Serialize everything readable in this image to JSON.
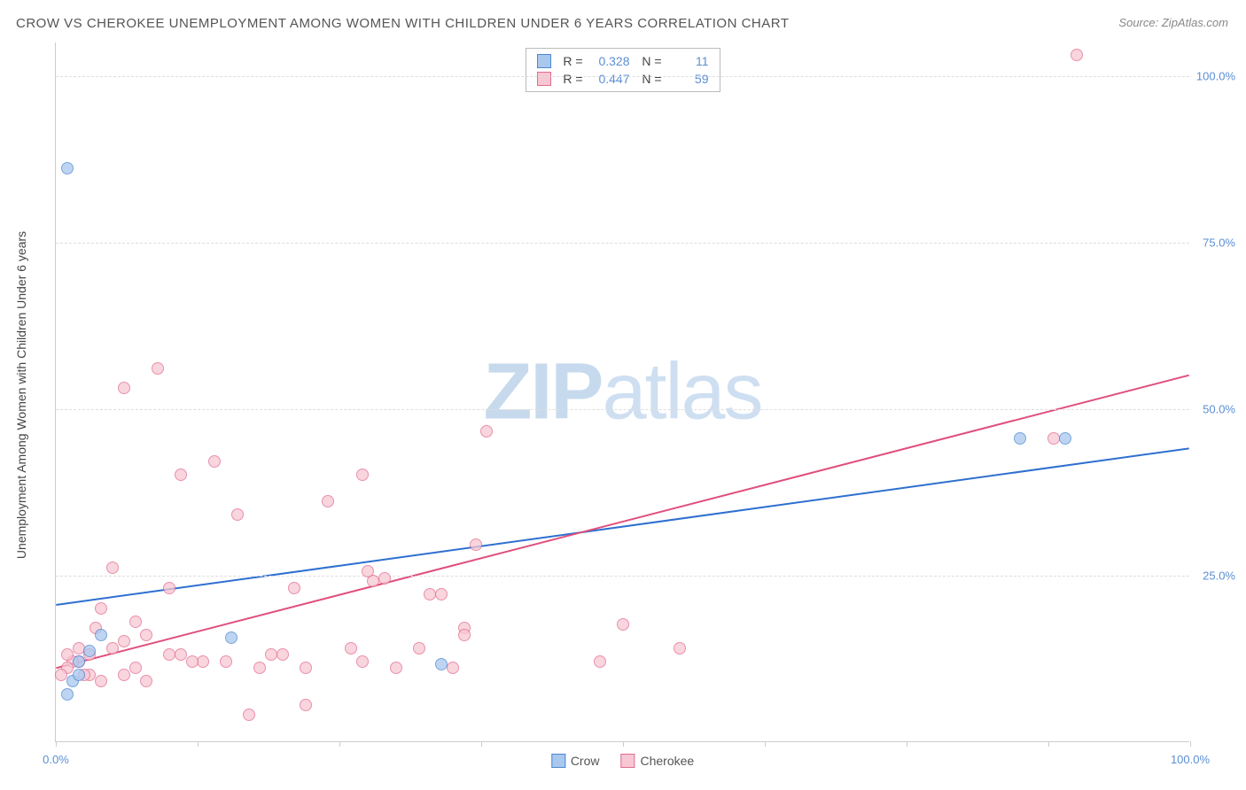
{
  "title": "CROW VS CHEROKEE UNEMPLOYMENT AMONG WOMEN WITH CHILDREN UNDER 6 YEARS CORRELATION CHART",
  "source_label": "Source:",
  "source_value": "ZipAtlas.com",
  "y_axis_label": "Unemployment Among Women with Children Under 6 years",
  "watermark": {
    "left": "ZIP",
    "right": "atlas"
  },
  "colors": {
    "crow_fill": "#a8c8ee",
    "crow_stroke": "#4f86d1",
    "cherokee_fill": "#f7c7d4",
    "cherokee_stroke": "#e26b8f",
    "crow_line": "#2e6fd0",
    "cherokee_line": "#e04f7c",
    "grid": "#dddddd",
    "axis_text": "#5b8fd6",
    "text": "#555555"
  },
  "chart": {
    "type": "scatter",
    "xlim": [
      0,
      100
    ],
    "ylim": [
      0,
      105
    ],
    "x_ticks": [
      0,
      12.5,
      25,
      37.5,
      50,
      62.5,
      75,
      87.5,
      100
    ],
    "x_tick_labels": {
      "0": "0.0%",
      "100": "100.0%"
    },
    "y_gridlines": [
      25,
      50,
      75,
      100
    ],
    "y_tick_labels": {
      "25": "25.0%",
      "50": "50.0%",
      "75": "75.0%",
      "100": "100.0%"
    },
    "point_radius": 7,
    "point_opacity": 0.75,
    "line_width": 2,
    "background_color": "#ffffff"
  },
  "legend_top": {
    "r_label": "R =",
    "n_label": "N =",
    "rows": [
      {
        "series": "crow",
        "r": "0.328",
        "n": "11"
      },
      {
        "series": "cherokee",
        "r": "0.447",
        "n": "59"
      }
    ]
  },
  "legend_bottom": [
    {
      "series": "crow",
      "label": "Crow"
    },
    {
      "series": "cherokee",
      "label": "Cherokee"
    }
  ],
  "trend_lines": {
    "crow": {
      "x1": 0,
      "y1": 20.5,
      "x2": 100,
      "y2": 44
    },
    "cherokee": {
      "x1": 0,
      "y1": 11,
      "x2": 100,
      "y2": 55
    }
  },
  "series": {
    "crow": [
      [
        1,
        86
      ],
      [
        1.5,
        9
      ],
      [
        1,
        7
      ],
      [
        3,
        13.5
      ],
      [
        4,
        16
      ],
      [
        15.5,
        15.5
      ],
      [
        34,
        11.5
      ],
      [
        85,
        45.5
      ],
      [
        89,
        45.5
      ],
      [
        2,
        10
      ],
      [
        2,
        12
      ]
    ],
    "cherokee": [
      [
        90,
        103
      ],
      [
        88,
        45.5
      ],
      [
        50,
        17.5
      ],
      [
        55,
        14
      ],
      [
        48,
        12
      ],
      [
        36,
        17
      ],
      [
        36,
        16
      ],
      [
        38,
        46.5
      ],
      [
        35,
        11
      ],
      [
        34,
        22
      ],
      [
        33,
        22
      ],
      [
        32,
        14
      ],
      [
        30,
        11
      ],
      [
        29,
        24.5
      ],
      [
        28,
        24
      ],
      [
        27.5,
        25.5
      ],
      [
        27,
        40
      ],
      [
        27,
        12
      ],
      [
        26,
        14
      ],
      [
        24,
        36
      ],
      [
        22,
        11
      ],
      [
        22,
        5.5
      ],
      [
        21,
        23
      ],
      [
        20,
        13
      ],
      [
        19,
        13
      ],
      [
        18,
        11
      ],
      [
        17,
        4
      ],
      [
        16,
        34
      ],
      [
        15,
        12
      ],
      [
        14,
        42
      ],
      [
        13,
        12
      ],
      [
        12,
        12
      ],
      [
        11,
        40
      ],
      [
        11,
        13
      ],
      [
        10,
        13
      ],
      [
        10,
        23
      ],
      [
        9,
        56
      ],
      [
        8,
        16
      ],
      [
        8,
        9
      ],
      [
        7,
        11
      ],
      [
        7,
        18
      ],
      [
        6,
        15
      ],
      [
        6,
        10
      ],
      [
        6,
        53
      ],
      [
        5,
        26
      ],
      [
        5,
        14
      ],
      [
        4,
        9
      ],
      [
        4,
        20
      ],
      [
        3.5,
        17
      ],
      [
        3,
        13
      ],
      [
        3,
        10
      ],
      [
        2.5,
        10
      ],
      [
        2,
        12
      ],
      [
        2,
        14
      ],
      [
        1.5,
        12
      ],
      [
        1,
        11
      ],
      [
        1,
        13
      ],
      [
        0.5,
        10
      ],
      [
        37,
        29.5
      ]
    ]
  }
}
